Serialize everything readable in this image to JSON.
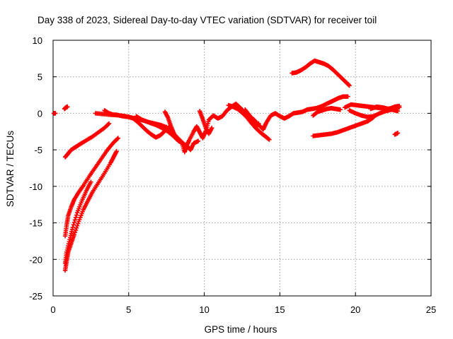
{
  "chart_data": {
    "type": "scatter",
    "title": "Day 338 of 2023, Sidereal Day-to-day VTEC variation (SDTVAR) for receiver toil",
    "xlabel": "GPS time / hours",
    "ylabel": "SDTVAR / TECUs",
    "xlim": [
      0,
      25
    ],
    "ylim": [
      -25,
      10
    ],
    "xticks": [
      0,
      5,
      10,
      15,
      20,
      25
    ],
    "yticks": [
      -25,
      -20,
      -15,
      -10,
      -5,
      0,
      5,
      10
    ],
    "grid": true,
    "marker": "plus",
    "color": "#ff0000",
    "series": [
      {
        "points": [
          [
            0.05,
            0.0
          ],
          [
            0.15,
            0.0
          ]
        ]
      },
      {
        "points": [
          [
            0.75,
            0.6
          ],
          [
            0.85,
            0.8
          ],
          [
            0.95,
            0.9
          ]
        ]
      },
      {
        "points": [
          [
            0.8,
            -6.0
          ],
          [
            1.0,
            -5.5
          ],
          [
            1.2,
            -5.0
          ],
          [
            1.5,
            -4.6
          ],
          [
            1.8,
            -4.2
          ],
          [
            2.2,
            -3.7
          ],
          [
            2.6,
            -3.2
          ],
          [
            3.0,
            -2.6
          ],
          [
            3.4,
            -2.0
          ],
          [
            3.7,
            -1.4
          ]
        ]
      },
      {
        "points": [
          [
            0.8,
            -16.8
          ],
          [
            0.9,
            -15.3
          ],
          [
            1.0,
            -14.0
          ],
          [
            1.2,
            -12.8
          ],
          [
            1.4,
            -11.8
          ],
          [
            1.7,
            -10.8
          ],
          [
            2.0,
            -9.9
          ],
          [
            2.4,
            -8.6
          ],
          [
            2.8,
            -7.4
          ],
          [
            3.2,
            -6.2
          ],
          [
            3.6,
            -5.0
          ],
          [
            4.0,
            -4.0
          ],
          [
            4.3,
            -3.4
          ]
        ]
      },
      {
        "points": [
          [
            0.8,
            -21.5
          ],
          [
            0.9,
            -20.2
          ],
          [
            1.0,
            -19.0
          ],
          [
            1.2,
            -17.8
          ],
          [
            1.4,
            -16.6
          ],
          [
            1.7,
            -14.8
          ],
          [
            2.0,
            -13.2
          ],
          [
            2.3,
            -12.0
          ],
          [
            2.6,
            -10.8
          ],
          [
            3.0,
            -9.5
          ],
          [
            3.4,
            -8.2
          ],
          [
            3.8,
            -6.8
          ],
          [
            4.0,
            -6.0
          ],
          [
            4.2,
            -5.2
          ]
        ]
      },
      {
        "points": [
          [
            0.8,
            -20.5
          ],
          [
            0.9,
            -19.0
          ],
          [
            1.1,
            -17.3
          ],
          [
            1.3,
            -15.6
          ],
          [
            1.6,
            -13.6
          ],
          [
            1.9,
            -12.0
          ],
          [
            2.2,
            -10.6
          ],
          [
            2.5,
            -9.4
          ]
        ]
      },
      {
        "points": [
          [
            2.8,
            0.0
          ],
          [
            3.3,
            -0.1
          ],
          [
            3.8,
            -0.2
          ],
          [
            4.2,
            -0.2
          ],
          [
            4.6,
            -0.4
          ],
          [
            5.0,
            -0.5
          ],
          [
            5.3,
            -0.7
          ],
          [
            5.6,
            -1.2
          ],
          [
            5.9,
            -1.8
          ],
          [
            6.2,
            -2.4
          ],
          [
            6.5,
            -2.9
          ],
          [
            6.8,
            -3.3
          ],
          [
            7.1,
            -3.0
          ],
          [
            7.4,
            -2.4
          ],
          [
            7.7,
            -1.8
          ]
        ]
      },
      {
        "points": [
          [
            3.4,
            0.4
          ],
          [
            3.7,
            0.0
          ],
          [
            4.0,
            -0.2
          ],
          [
            4.4,
            -0.3
          ],
          [
            4.8,
            -0.4
          ],
          [
            5.2,
            -0.6
          ],
          [
            5.6,
            -0.8
          ],
          [
            6.0,
            -1.0
          ],
          [
            6.4,
            -1.3
          ],
          [
            6.8,
            -1.6
          ],
          [
            7.2,
            -2.0
          ],
          [
            7.6,
            -2.5
          ],
          [
            8.0,
            -3.2
          ],
          [
            8.3,
            -3.8
          ],
          [
            8.6,
            -4.1
          ],
          [
            8.9,
            -4.6
          ],
          [
            9.1,
            -5.0
          ],
          [
            9.3,
            -4.1
          ],
          [
            9.6,
            -3.8
          ]
        ]
      },
      {
        "points": [
          [
            5.5,
            -0.4
          ],
          [
            5.9,
            -0.9
          ],
          [
            6.3,
            -1.2
          ],
          [
            6.7,
            -1.4
          ],
          [
            7.1,
            -1.6
          ],
          [
            7.5,
            -1.9
          ],
          [
            7.9,
            -2.6
          ],
          [
            8.2,
            -3.3
          ],
          [
            8.5,
            -3.9
          ],
          [
            8.7,
            -5.3
          ],
          [
            8.8,
            -4.6
          ],
          [
            9.0,
            -3.7
          ],
          [
            9.3,
            -2.5
          ],
          [
            9.5,
            -1.8
          ],
          [
            9.7,
            -2.6
          ],
          [
            9.9,
            -3.4
          ],
          [
            10.1,
            -2.4
          ],
          [
            10.3,
            -0.9
          ],
          [
            10.6,
            -0.3
          ],
          [
            10.9,
            -0.7
          ],
          [
            11.2,
            -0.4
          ],
          [
            11.5,
            0.4
          ],
          [
            11.8,
            0.9
          ],
          [
            12.1,
            1.3
          ],
          [
            12.4,
            0.7
          ],
          [
            12.7,
            0.1
          ],
          [
            13.0,
            -0.4
          ],
          [
            13.3,
            -0.9
          ],
          [
            13.6,
            -1.6
          ],
          [
            13.9,
            -2.2
          ],
          [
            14.1,
            -1.3
          ],
          [
            14.4,
            -0.3
          ],
          [
            14.7,
            0.0
          ],
          [
            15.0,
            -0.4
          ],
          [
            15.3,
            -0.7
          ],
          [
            15.6,
            -0.4
          ],
          [
            15.9,
            0.0
          ],
          [
            16.2,
            0.1
          ],
          [
            16.5,
            0.2
          ],
          [
            16.8,
            0.5
          ],
          [
            17.1,
            0.6
          ],
          [
            17.4,
            0.7
          ],
          [
            17.7,
            0.9
          ],
          [
            18.0,
            1.2
          ],
          [
            18.3,
            1.5
          ],
          [
            18.6,
            1.8
          ],
          [
            18.9,
            2.1
          ],
          [
            19.2,
            2.3
          ],
          [
            19.5,
            2.3
          ]
        ]
      },
      {
        "points": [
          [
            7.4,
            0.2
          ],
          [
            7.6,
            -0.6
          ],
          [
            7.8,
            -1.8
          ],
          [
            8.0,
            -2.8
          ],
          [
            8.3,
            -3.6
          ]
        ]
      },
      {
        "points": [
          [
            9.7,
            0.3
          ],
          [
            9.9,
            -0.8
          ],
          [
            10.1,
            -2.0
          ],
          [
            10.3,
            -2.8
          ],
          [
            10.5,
            -2.0
          ]
        ]
      },
      {
        "points": [
          [
            11.6,
            1.1
          ],
          [
            11.9,
            0.9
          ],
          [
            12.2,
            0.6
          ],
          [
            12.5,
            0.1
          ],
          [
            12.8,
            -0.5
          ],
          [
            13.1,
            -1.3
          ],
          [
            13.4,
            -2.0
          ],
          [
            13.7,
            -2.6
          ],
          [
            14.0,
            -3.1
          ],
          [
            14.3,
            -3.6
          ]
        ]
      },
      {
        "points": [
          [
            12.7,
            0.5
          ],
          [
            13.0,
            -0.3
          ],
          [
            13.2,
            -1.3
          ],
          [
            13.4,
            -1.9
          ],
          [
            13.6,
            -1.4
          ]
        ]
      },
      {
        "points": [
          [
            15.8,
            5.5
          ],
          [
            16.1,
            5.6
          ],
          [
            16.4,
            5.9
          ],
          [
            16.7,
            6.3
          ],
          [
            17.0,
            6.8
          ],
          [
            17.3,
            7.2
          ],
          [
            17.6,
            7.0
          ],
          [
            17.9,
            6.8
          ],
          [
            18.2,
            6.5
          ],
          [
            18.5,
            6.0
          ],
          [
            18.8,
            5.4
          ],
          [
            19.1,
            4.8
          ],
          [
            19.4,
            4.2
          ],
          [
            19.6,
            3.8
          ]
        ]
      },
      {
        "points": [
          [
            17.2,
            -0.3
          ],
          [
            17.5,
            0.2
          ],
          [
            17.8,
            0.4
          ],
          [
            18.1,
            0.6
          ],
          [
            18.4,
            0.7
          ],
          [
            18.7,
            0.6
          ],
          [
            19.0,
            0.5
          ]
        ]
      },
      {
        "points": [
          [
            17.2,
            -3.1
          ],
          [
            17.6,
            -3.0
          ],
          [
            18.0,
            -2.9
          ],
          [
            18.4,
            -2.8
          ],
          [
            18.8,
            -2.6
          ],
          [
            19.2,
            -2.3
          ],
          [
            19.6,
            -2.0
          ],
          [
            20.0,
            -1.7
          ],
          [
            20.4,
            -1.4
          ],
          [
            20.8,
            -1.1
          ],
          [
            21.1,
            -0.7
          ],
          [
            21.3,
            -0.3
          ]
        ]
      },
      {
        "points": [
          [
            19.3,
            0.8
          ],
          [
            19.7,
            1.2
          ],
          [
            20.1,
            1.1
          ],
          [
            20.5,
            1.0
          ],
          [
            20.9,
            0.9
          ],
          [
            21.3,
            0.8
          ],
          [
            21.7,
            0.7
          ],
          [
            22.1,
            0.6
          ],
          [
            22.5,
            0.7
          ],
          [
            22.9,
            0.8
          ]
        ]
      },
      {
        "points": [
          [
            19.6,
            0.4
          ],
          [
            20.0,
            0.0
          ],
          [
            20.4,
            -0.3
          ],
          [
            20.8,
            -0.5
          ],
          [
            21.2,
            -0.4
          ],
          [
            21.6,
            0.0
          ],
          [
            22.0,
            0.3
          ],
          [
            22.4,
            0.5
          ],
          [
            22.8,
            0.3
          ]
        ]
      },
      {
        "points": [
          [
            21.0,
            0.6
          ],
          [
            21.4,
            0.9
          ],
          [
            21.8,
            0.8
          ],
          [
            22.2,
            0.6
          ],
          [
            22.6,
            0.9
          ],
          [
            22.9,
            1.0
          ]
        ]
      },
      {
        "points": [
          [
            22.6,
            -2.9
          ],
          [
            22.8,
            -2.7
          ]
        ]
      }
    ]
  }
}
